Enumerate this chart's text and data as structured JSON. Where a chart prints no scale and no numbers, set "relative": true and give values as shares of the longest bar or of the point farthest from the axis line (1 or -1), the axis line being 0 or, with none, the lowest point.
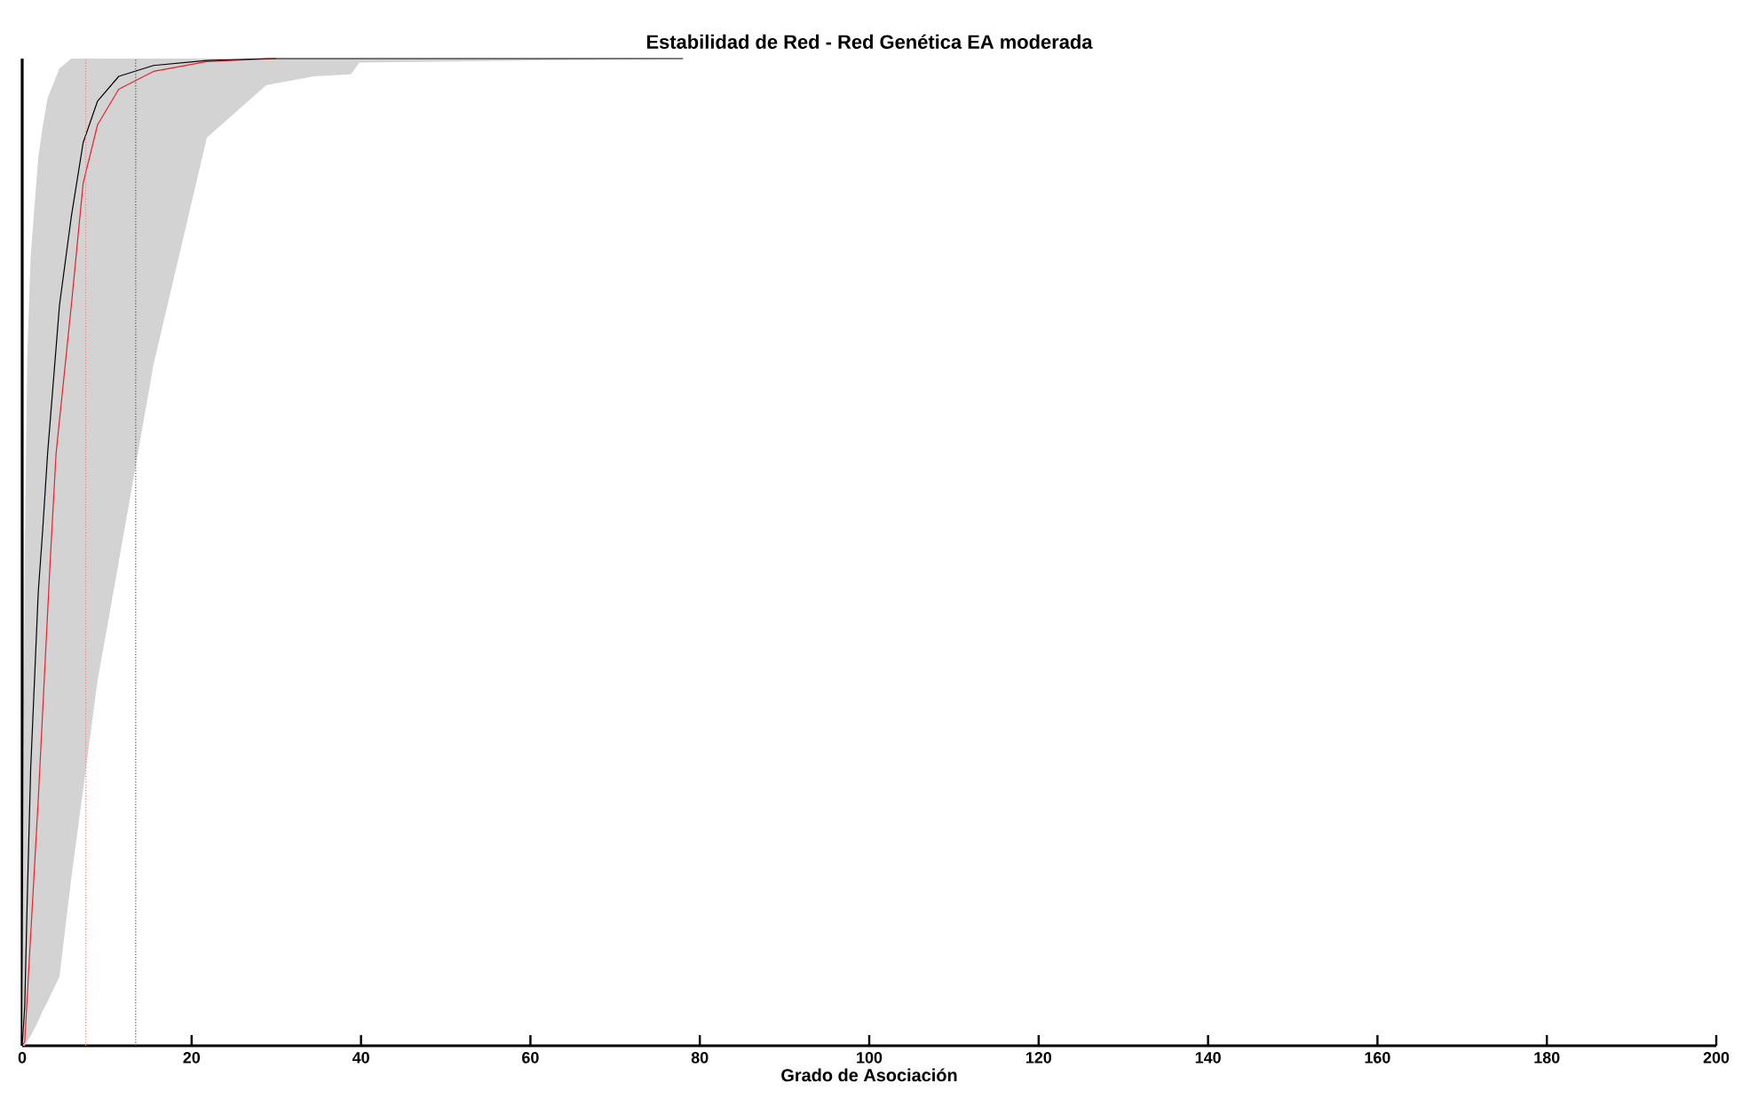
{
  "chart_data": {
    "type": "line",
    "title": "Estabilidad de Red - Red Genética EA moderada",
    "xlabel": "Grado de Asociación",
    "relative": true,
    "tick_labels": "x",
    "xlim": [
      0,
      200
    ],
    "xticks": [
      0,
      20,
      40,
      60,
      80,
      100,
      120,
      140,
      160,
      180,
      200
    ],
    "series": [
      {
        "color": "#000000",
        "x": [
          0,
          0.3,
          0.6,
          1,
          1.9,
          2.4,
          3,
          4.4,
          5.8,
          7.2,
          8.9,
          11.4,
          15.5,
          21.8,
          28.8,
          34.4,
          38.8,
          39.8,
          78
        ],
        "values": [
          0,
          0.04,
          0.15,
          0.28,
          0.46,
          0.52,
          0.6,
          0.75,
          0.84,
          0.915,
          0.957,
          0.982,
          0.993,
          0.998,
          1,
          1,
          1,
          1,
          1
        ],
        "lower": [
          0,
          0,
          0.005,
          0.01,
          0.025,
          0.035,
          0.045,
          0.07,
          0.17,
          0.26,
          0.37,
          0.49,
          0.69,
          0.92,
          0.973,
          0.982,
          0.984,
          0.996,
          1
        ],
        "upper": [
          0,
          0.5,
          0.7,
          0.8,
          0.9,
          0.93,
          0.96,
          0.99,
          1,
          1,
          1,
          1,
          1,
          1,
          1,
          1,
          1,
          1,
          1
        ]
      },
      {
        "color": "#e8202a",
        "x": [
          0,
          0.3,
          1.9,
          3.3,
          4,
          5.8,
          7.2,
          8.9,
          11.4,
          15.5,
          21.8,
          30
        ],
        "values": [
          0,
          0.004,
          0.25,
          0.49,
          0.6,
          0.75,
          0.874,
          0.933,
          0.969,
          0.987,
          0.997,
          1
        ]
      }
    ],
    "ref_lines": [
      {
        "axis": "x",
        "value": 7.5,
        "color": "#f08080",
        "line_style": "dotted"
      },
      {
        "axis": "x",
        "value": 13.4,
        "color": "#555555",
        "line_style": "dotted"
      }
    ]
  }
}
